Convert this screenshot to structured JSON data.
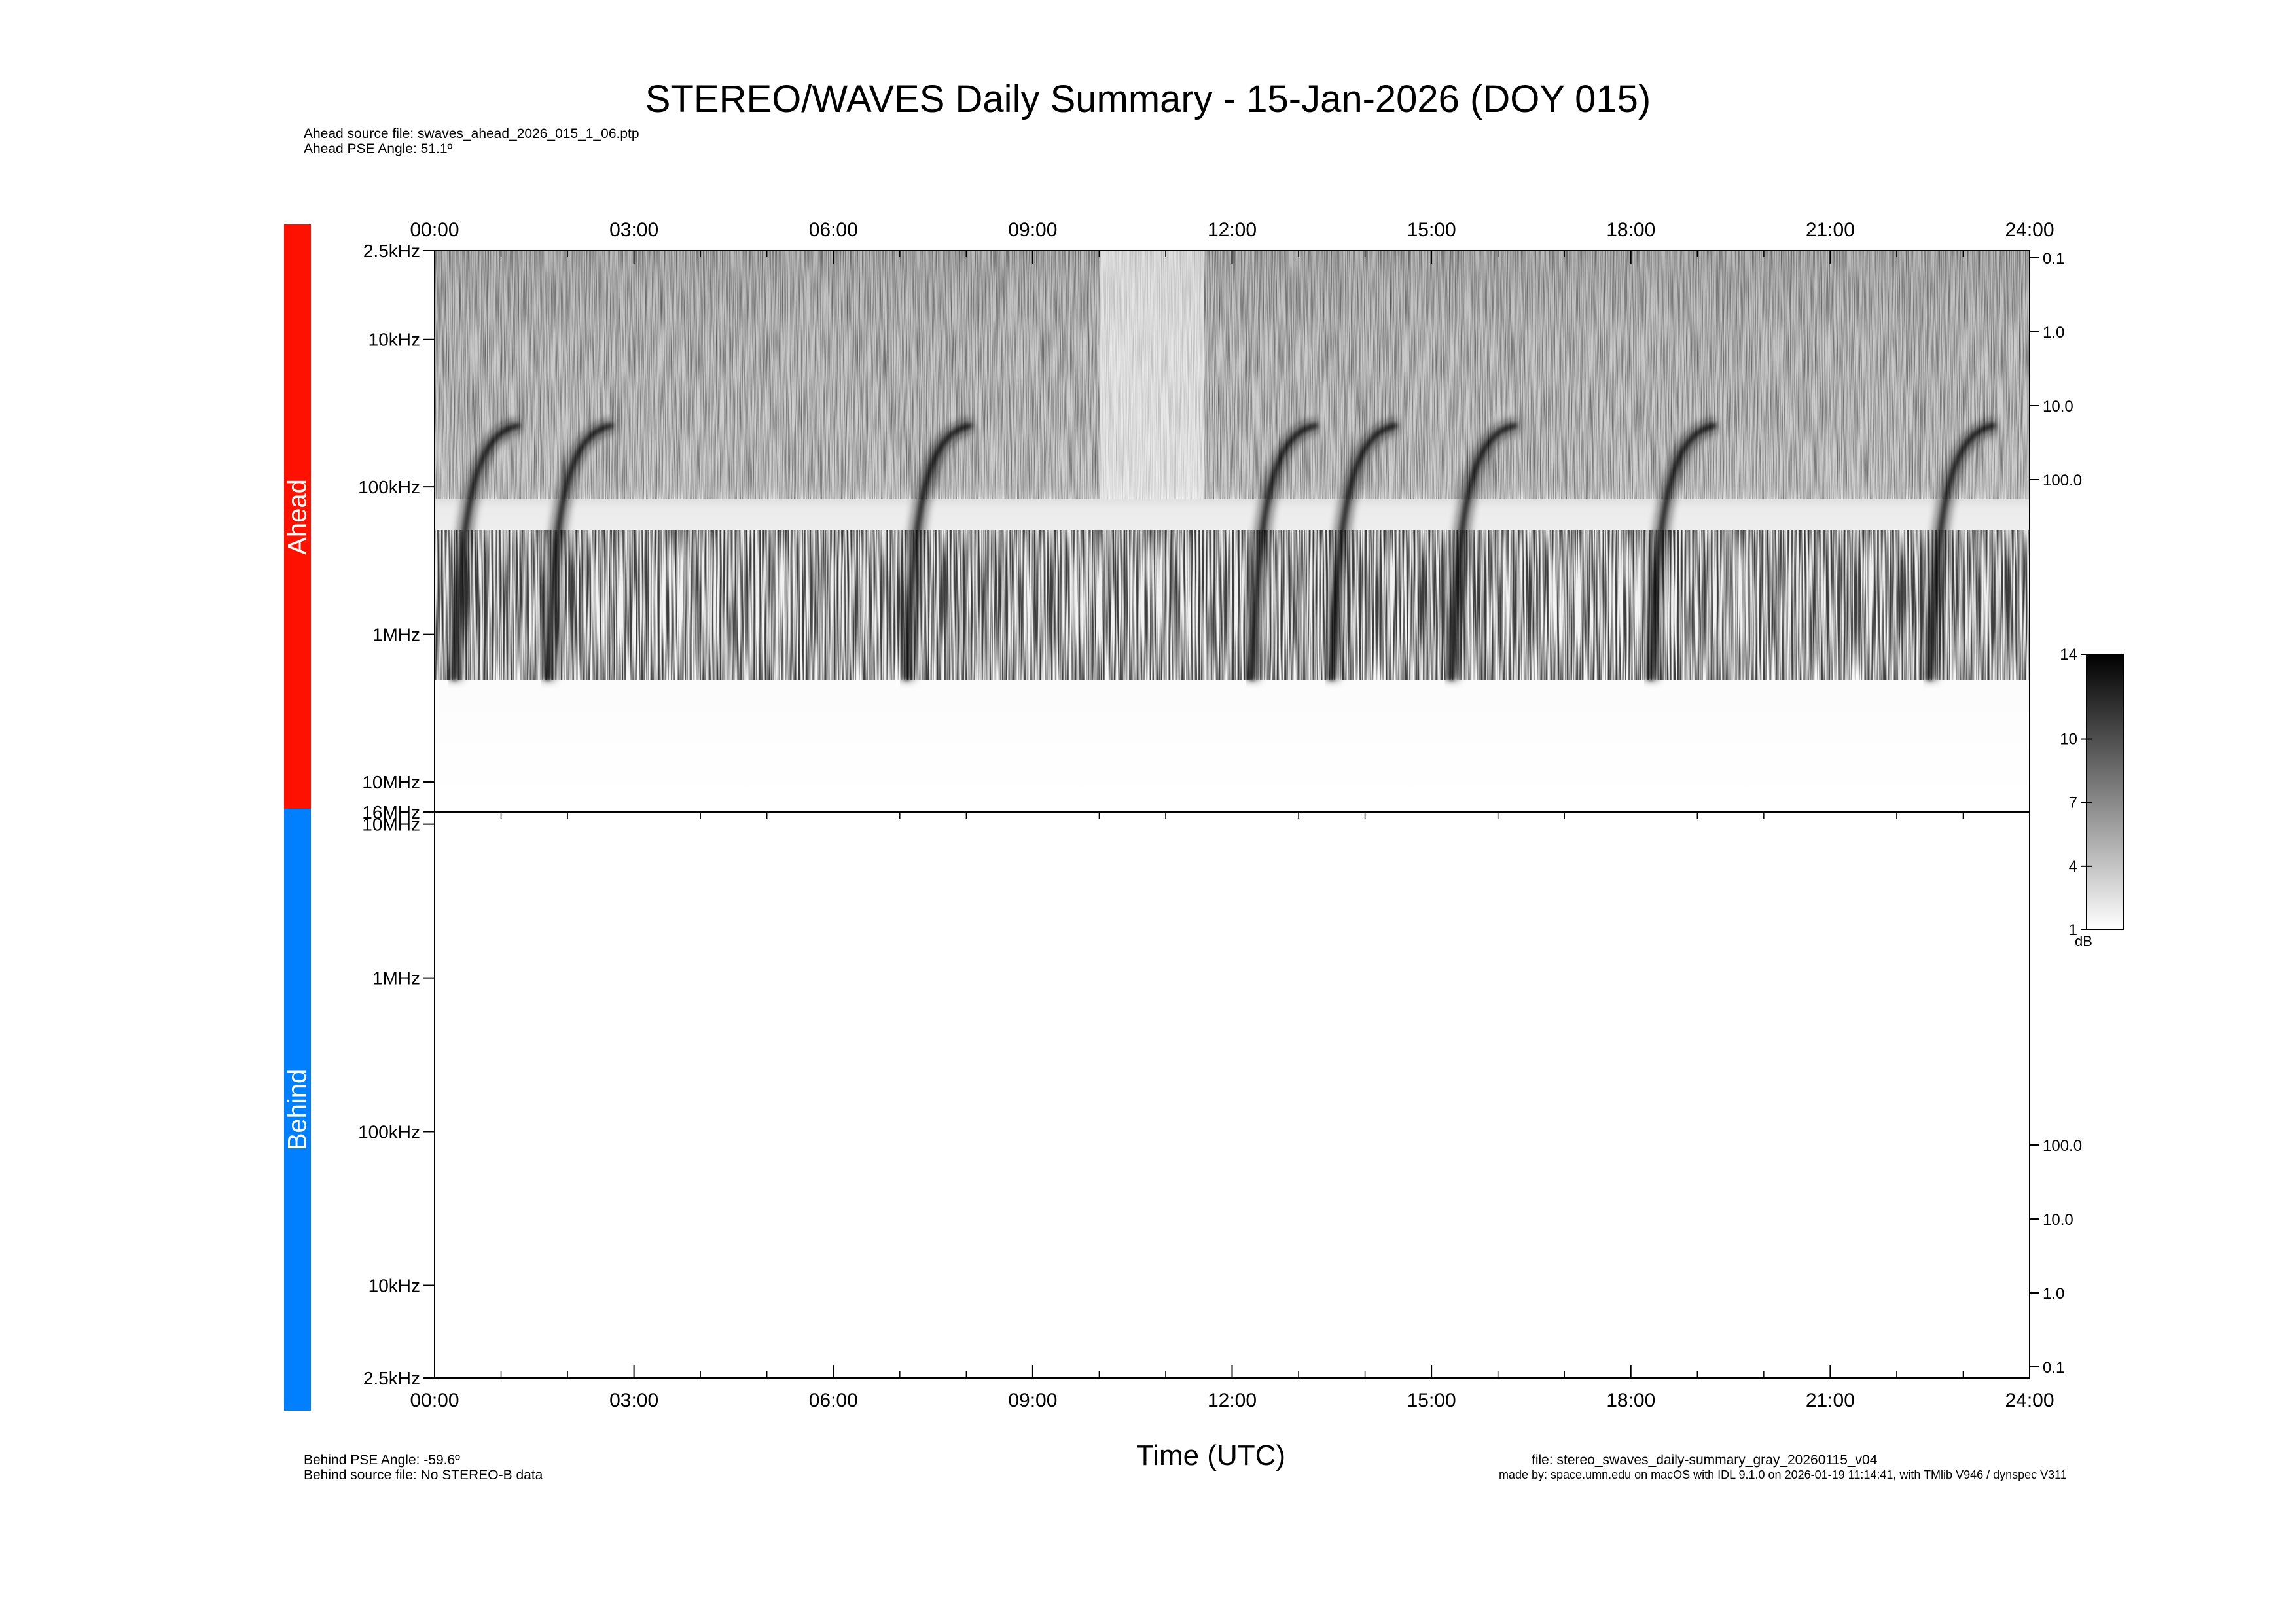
{
  "title": "STEREO/WAVES Daily Summary - 15-Jan-2026 (DOY 015)",
  "ahead_meta": {
    "source_file": "Ahead source file: swaves_ahead_2026_015_1_06.ptp",
    "pse_angle": "Ahead PSE Angle:   51.1º"
  },
  "behind_meta": {
    "pse_angle": "Behind PSE Angle:  -59.6º",
    "source_file": "Behind source file: No STEREO-B data"
  },
  "footer": {
    "file": "file: stereo_swaves_daily-summary_gray_20260115_v04",
    "made_by": "made by: space.umn.edu on macOS with IDL 9.1.0 on 2026-01-19 11:14:41, with TMlib V946 / dynspec V311"
  },
  "panels": {
    "ahead_label": "Ahead",
    "behind_label": "Behind"
  },
  "colors": {
    "ahead_bar": "#ff1100",
    "behind_bar": "#0080ff",
    "axis": "#000000"
  },
  "chart_data": {
    "type": "heatmap",
    "xlabel": "Time (UTC)",
    "x_ticks": [
      "00:00",
      "03:00",
      "06:00",
      "09:00",
      "12:00",
      "15:00",
      "18:00",
      "21:00",
      "24:00"
    ],
    "x_range_hours": [
      0,
      24
    ],
    "y_scale": "log",
    "ahead": {
      "y_ticks_left": [
        "2.5kHz",
        "10kHz",
        "100kHz",
        "1MHz",
        "10MHz",
        "16MHz"
      ],
      "y_range": [
        "2.5kHz",
        "16MHz"
      ],
      "y_ticks_right": [
        "0.1",
        "1.0",
        "10.0",
        "100.0"
      ],
      "radio_bursts_start_hours": [
        0.4,
        1.8,
        7.2,
        12.4,
        13.6,
        15.4,
        18.4,
        22.6
      ]
    },
    "behind": {
      "y_ticks_left": [
        "10MHz",
        "1MHz",
        "100kHz",
        "10kHz",
        "2.5kHz"
      ],
      "y_ticks_right": [
        "100.0",
        "10.0",
        "1.0",
        "0.1"
      ],
      "data": []
    },
    "colorbar": {
      "ticks": [
        "14",
        "10",
        "7",
        "4",
        "1"
      ],
      "range": [
        1,
        14
      ],
      "unit": "dB",
      "colormap": "white-to-black"
    }
  }
}
